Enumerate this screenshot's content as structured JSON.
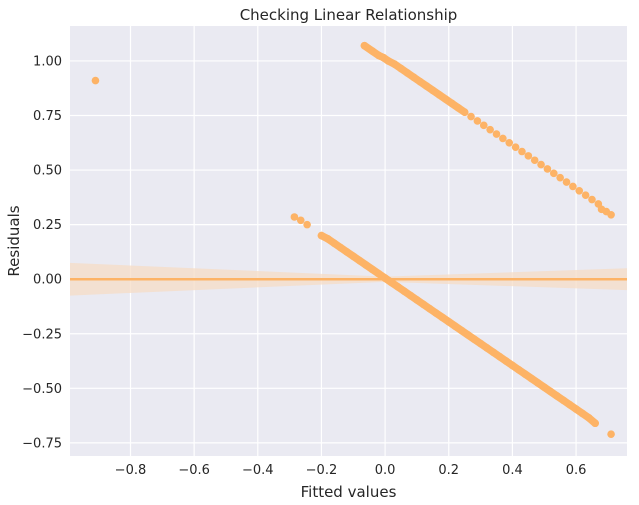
{
  "chart_data": {
    "type": "scatter",
    "title": "Checking Linear Relationship",
    "xlabel": "Fitted values",
    "ylabel": "Residuals",
    "xlim": [
      -0.99,
      0.76
    ],
    "ylim": [
      -0.81,
      1.16
    ],
    "xticks": [
      -0.8,
      -0.6,
      -0.4,
      -0.2,
      0.0,
      0.2,
      0.4,
      0.6
    ],
    "xtick_labels": [
      "−0.8",
      "−0.6",
      "−0.4",
      "−0.2",
      "0.0",
      "0.2",
      "0.4",
      "0.6"
    ],
    "yticks": [
      -0.75,
      -0.5,
      -0.25,
      0.0,
      0.25,
      0.5,
      0.75,
      1.0
    ],
    "ytick_labels": [
      "−0.75",
      "−0.50",
      "−0.25",
      "0.00",
      "0.25",
      "0.50",
      "0.75",
      "1.00"
    ],
    "grid": true,
    "background_color": "#eaeaf2",
    "point_color": "#fdb366",
    "line_color": "#fdb366",
    "band_color": "#f5dcc6",
    "regression_line": {
      "slope": 0.0,
      "intercept": 0.0
    },
    "confidence_band": [
      {
        "x": -0.99,
        "upper": 0.075,
        "lower": -0.075
      },
      {
        "x": 0.0,
        "upper": 0.012,
        "lower": -0.012
      },
      {
        "x": 0.76,
        "upper": 0.05,
        "lower": -0.05
      }
    ],
    "series": [
      {
        "points": [
          [
            -0.91,
            0.91
          ],
          [
            -0.065,
            1.07
          ],
          [
            -0.04,
            1.045
          ],
          [
            -0.02,
            1.025
          ],
          [
            -0.005,
            1.015
          ],
          [
            0.01,
            1.0
          ],
          [
            0.03,
            0.985
          ],
          [
            0.05,
            0.965
          ],
          [
            0.07,
            0.945
          ],
          [
            0.09,
            0.925
          ],
          [
            0.11,
            0.905
          ],
          [
            0.13,
            0.885
          ],
          [
            0.15,
            0.865
          ],
          [
            0.17,
            0.845
          ],
          [
            0.19,
            0.825
          ],
          [
            0.21,
            0.805
          ],
          [
            0.23,
            0.785
          ],
          [
            0.25,
            0.765
          ],
          [
            0.27,
            0.745
          ],
          [
            0.29,
            0.725
          ],
          [
            0.31,
            0.705
          ],
          [
            0.33,
            0.685
          ],
          [
            0.35,
            0.665
          ],
          [
            0.37,
            0.645
          ],
          [
            0.39,
            0.625
          ],
          [
            0.41,
            0.605
          ],
          [
            0.43,
            0.585
          ],
          [
            0.45,
            0.565
          ],
          [
            0.47,
            0.545
          ],
          [
            0.49,
            0.525
          ],
          [
            0.51,
            0.505
          ],
          [
            0.53,
            0.485
          ],
          [
            0.55,
            0.465
          ],
          [
            0.57,
            0.445
          ],
          [
            0.59,
            0.425
          ],
          [
            0.61,
            0.405
          ],
          [
            0.63,
            0.385
          ],
          [
            0.65,
            0.365
          ],
          [
            0.67,
            0.345
          ],
          [
            0.68,
            0.32
          ],
          [
            0.695,
            0.31
          ],
          [
            0.71,
            0.295
          ],
          [
            -0.285,
            0.285
          ],
          [
            -0.265,
            0.27
          ],
          [
            -0.245,
            0.25
          ],
          [
            -0.2,
            0.2
          ],
          [
            -0.18,
            0.185
          ],
          [
            -0.16,
            0.165
          ],
          [
            -0.14,
            0.145
          ],
          [
            -0.12,
            0.125
          ],
          [
            -0.1,
            0.105
          ],
          [
            -0.08,
            0.085
          ],
          [
            -0.06,
            0.065
          ],
          [
            -0.04,
            0.045
          ],
          [
            -0.02,
            0.025
          ],
          [
            0.0,
            0.005
          ],
          [
            0.02,
            -0.015
          ],
          [
            0.04,
            -0.035
          ],
          [
            0.06,
            -0.055
          ],
          [
            0.08,
            -0.075
          ],
          [
            0.1,
            -0.095
          ],
          [
            0.12,
            -0.115
          ],
          [
            0.14,
            -0.135
          ],
          [
            0.16,
            -0.155
          ],
          [
            0.18,
            -0.175
          ],
          [
            0.2,
            -0.195
          ],
          [
            0.22,
            -0.215
          ],
          [
            0.24,
            -0.235
          ],
          [
            0.26,
            -0.255
          ],
          [
            0.28,
            -0.275
          ],
          [
            0.3,
            -0.295
          ],
          [
            0.32,
            -0.315
          ],
          [
            0.34,
            -0.335
          ],
          [
            0.36,
            -0.355
          ],
          [
            0.38,
            -0.375
          ],
          [
            0.4,
            -0.395
          ],
          [
            0.42,
            -0.415
          ],
          [
            0.44,
            -0.435
          ],
          [
            0.46,
            -0.455
          ],
          [
            0.48,
            -0.475
          ],
          [
            0.5,
            -0.495
          ],
          [
            0.52,
            -0.515
          ],
          [
            0.54,
            -0.535
          ],
          [
            0.56,
            -0.555
          ],
          [
            0.58,
            -0.575
          ],
          [
            0.6,
            -0.595
          ],
          [
            0.62,
            -0.615
          ],
          [
            0.64,
            -0.635
          ],
          [
            0.66,
            -0.66
          ],
          [
            0.71,
            -0.71
          ]
        ]
      }
    ]
  }
}
